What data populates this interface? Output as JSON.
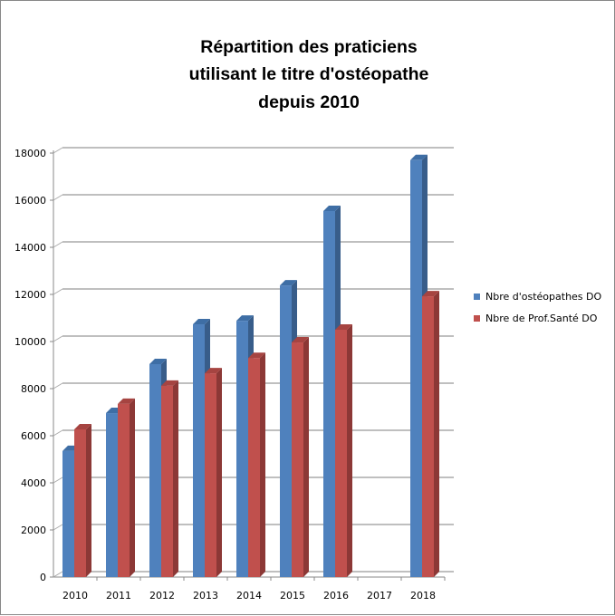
{
  "chart_data": {
    "type": "bar",
    "title": [
      "Répartition des praticiens",
      "utilisant le titre d'ostéopathe",
      "depuis 2010"
    ],
    "categories": [
      "2010",
      "2011",
      "2012",
      "2013",
      "2014",
      "2015",
      "2016",
      "2017",
      "2018"
    ],
    "series": [
      {
        "name": "Nbre d'ostéopathes DO",
        "color": "#4f81bd",
        "values": [
          5350,
          6960,
          9040,
          10730,
          10880,
          12380,
          15540,
          null,
          17700
        ]
      },
      {
        "name": "Nbre de Prof.Santé DO",
        "color": "#c0504d",
        "values": [
          6270,
          7350,
          8120,
          8650,
          9300,
          9960,
          10500,
          null,
          11920
        ]
      }
    ],
    "ylim": [
      0,
      18000
    ],
    "yticks": [
      "0",
      "2000",
      "4000",
      "6000",
      "8000",
      "10000",
      "12000",
      "14000",
      "16000",
      "18000"
    ],
    "grid": true,
    "legend": "right",
    "style": "3d-clustered-column"
  }
}
